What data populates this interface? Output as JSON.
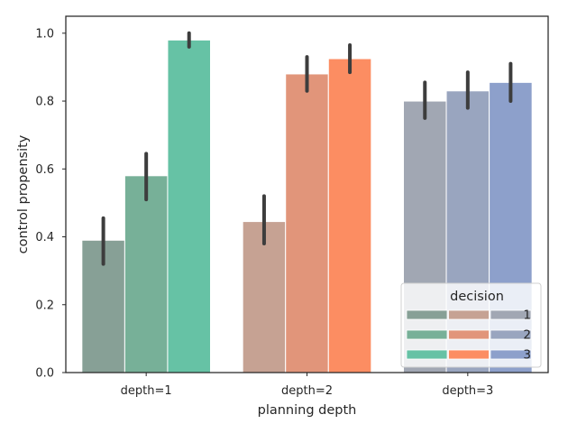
{
  "chart_data": {
    "type": "bar",
    "xlabel": "planning depth",
    "ylabel": "control propensity",
    "categories": [
      "depth=1",
      "depth=2",
      "depth=3"
    ],
    "ylim": [
      0.0,
      1.05
    ],
    "yticks": [
      0.0,
      0.2,
      0.4,
      0.6,
      0.8,
      1.0
    ],
    "ytick_labels": [
      "0.0",
      "0.2",
      "0.4",
      "0.6",
      "0.8",
      "1.0"
    ],
    "grid": false,
    "legend": {
      "title": "decision",
      "placement": "lower-right",
      "labels": [
        "1",
        "2",
        "3"
      ]
    },
    "series": [
      {
        "name": "1",
        "values": [
          0.39,
          0.445,
          0.8
        ],
        "ci_low": [
          0.32,
          0.38,
          0.75
        ],
        "ci_high": [
          0.455,
          0.52,
          0.855
        ],
        "colors": [
          "#87a096",
          "#c6a293",
          "#a1a7b3"
        ]
      },
      {
        "name": "2",
        "values": [
          0.58,
          0.88,
          0.83
        ],
        "ci_low": [
          0.51,
          0.83,
          0.78
        ],
        "ci_high": [
          0.645,
          0.93,
          0.885
        ],
        "colors": [
          "#77b098",
          "#e1957a",
          "#99a5bf"
        ]
      },
      {
        "name": "3",
        "values": [
          0.98,
          0.925,
          0.855
        ],
        "ci_low": [
          0.96,
          0.885,
          0.8
        ],
        "ci_high": [
          1.0,
          0.965,
          0.91
        ],
        "colors": [
          "#66c2a5",
          "#fc8d62",
          "#8da0cb"
        ]
      }
    ]
  }
}
